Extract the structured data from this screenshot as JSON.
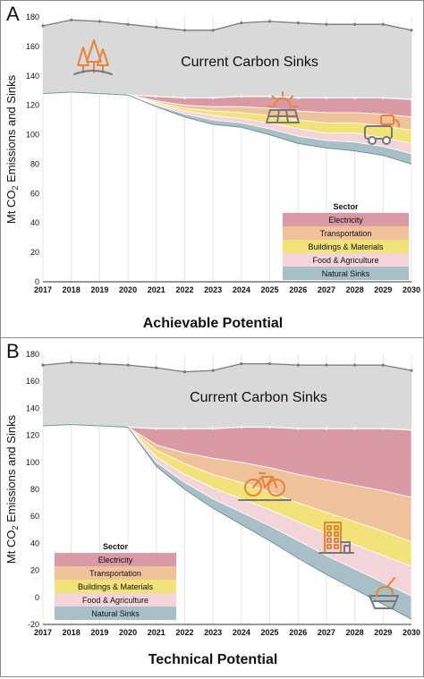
{
  "colors": {
    "sinks_fill": "#d9d9d9",
    "total_line": "#7a7a7a",
    "Electricity": "#d99aa6",
    "Transportation": "#efc29b",
    "Buildings & Materials": "#f2e27a",
    "Food & Agriculture": "#f3d4d8",
    "Natural Sinks": "#a9bfc8",
    "icon_orange": "#e8843a",
    "icon_gray": "#777777"
  },
  "icons": {
    "panel_a": [
      "forest-icon",
      "solar-panel-icon",
      "electric-vehicle-icon"
    ],
    "panel_b": [
      "bicycle-icon",
      "building-icon",
      "food-bowl-icon"
    ]
  },
  "chart_data": [
    {
      "panel": "A",
      "type": "area",
      "title": "Achievable Potential",
      "xlabel": "",
      "ylabel": "Mt CO2 Emissions and Sinks",
      "ylabel_sub": "2",
      "ylim": [
        0,
        180
      ],
      "yticks": [
        0,
        20,
        40,
        60,
        80,
        100,
        120,
        140,
        160,
        180
      ],
      "x": [
        2017,
        2018,
        2019,
        2020,
        2021,
        2022,
        2023,
        2024,
        2025,
        2026,
        2027,
        2028,
        2029,
        2030
      ],
      "grid": "vertical",
      "area_label": "Current Carbon Sinks",
      "total": [
        174,
        178,
        177,
        175,
        173,
        171,
        171,
        176,
        177,
        176,
        175,
        175,
        175,
        171
      ],
      "baseline": [
        128,
        129,
        128,
        127,
        126,
        125,
        125,
        126,
        126,
        125,
        125,
        125,
        125,
        124
      ],
      "series": [
        {
          "name": "Electricity",
          "values": [
            0,
            0,
            0,
            0,
            3,
            5,
            6,
            7,
            8,
            9,
            10,
            10,
            11,
            12
          ]
        },
        {
          "name": "Transportation",
          "values": [
            0,
            0,
            0,
            0,
            1,
            2,
            3,
            4,
            5,
            6,
            7,
            7,
            8,
            9
          ]
        },
        {
          "name": "Buildings & Materials",
          "values": [
            0,
            0,
            0,
            0,
            1,
            2,
            3,
            4,
            5,
            6,
            7,
            7,
            8,
            9
          ]
        },
        {
          "name": "Food & Agriculture",
          "values": [
            0,
            0,
            0,
            0,
            1,
            2,
            3,
            3,
            4,
            5,
            5,
            6,
            6,
            7
          ]
        },
        {
          "name": "Natural Sinks",
          "values": [
            0,
            0,
            0,
            0,
            1,
            2,
            3,
            3,
            4,
            5,
            5,
            6,
            6,
            7
          ]
        }
      ],
      "legend": {
        "title": "Sector",
        "position": "lower right",
        "entries": [
          "Electricity",
          "Transportation",
          "Buildings & Materials",
          "Food & Agriculture",
          "Natural Sinks"
        ]
      }
    },
    {
      "panel": "B",
      "type": "area",
      "title": "Technical Potential",
      "xlabel": "",
      "ylabel": "Mt CO2 Emissions and Sinks",
      "ylabel_sub": "2",
      "ylim": [
        -20,
        180
      ],
      "yticks": [
        -20,
        0,
        20,
        40,
        60,
        80,
        100,
        120,
        140,
        160,
        180
      ],
      "x": [
        2017,
        2018,
        2019,
        2020,
        2021,
        2022,
        2023,
        2024,
        2025,
        2026,
        2027,
        2028,
        2029,
        2030
      ],
      "grid": "vertical",
      "area_label": "Current Carbon Sinks",
      "total": [
        172,
        174,
        173,
        172,
        170,
        167,
        168,
        173,
        173,
        172,
        172,
        172,
        172,
        168
      ],
      "baseline": [
        127,
        128,
        127,
        126,
        125,
        125,
        125,
        126,
        126,
        125,
        125,
        125,
        125,
        124
      ],
      "series": [
        {
          "name": "Electricity",
          "values": [
            0,
            0,
            0,
            0,
            12,
            18,
            22,
            26,
            30,
            34,
            38,
            42,
            46,
            50
          ]
        },
        {
          "name": "Transportation",
          "values": [
            0,
            0,
            0,
            0,
            4,
            8,
            12,
            15,
            18,
            21,
            24,
            27,
            30,
            33
          ]
        },
        {
          "name": "Buildings & Materials",
          "values": [
            0,
            0,
            0,
            0,
            5,
            8,
            10,
            12,
            13,
            14,
            16,
            17,
            18,
            18
          ]
        },
        {
          "name": "Food & Agriculture",
          "values": [
            0,
            0,
            0,
            0,
            4,
            6,
            8,
            10,
            12,
            14,
            16,
            18,
            20,
            22
          ]
        },
        {
          "name": "Natural Sinks",
          "values": [
            0,
            0,
            0,
            0,
            3,
            5,
            7,
            9,
            11,
            13,
            14,
            15,
            16,
            17
          ]
        }
      ],
      "legend": {
        "title": "Sector",
        "position": "lower left",
        "entries": [
          "Electricity",
          "Transportation",
          "Buildings & Materials",
          "Food & Agriculture",
          "Natural Sinks"
        ]
      }
    }
  ]
}
